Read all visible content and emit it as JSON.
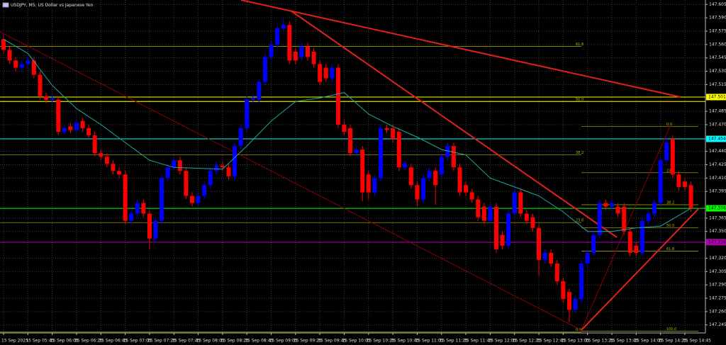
{
  "chart_data": {
    "type": "candlestick",
    "title": "USDJPY, M5:  US Dollar vs Japanese Yen",
    "up_color": "#0000ff",
    "down_color": "#ff0000",
    "grid": true,
    "ylim": [
      147.236,
      147.61
    ],
    "yticks": [
      147.605,
      {
        "value": 147.59,
        "label": "147.590"
      },
      147.575,
      {
        "value": 147.56,
        "label": "147.560"
      },
      147.545,
      {
        "value": 147.53,
        "label": "147.530"
      },
      147.515,
      147.485,
      {
        "value": 147.47,
        "label": "147.470"
      },
      {
        "value": 147.44,
        "label": "147.440"
      },
      147.425,
      {
        "value": 147.41,
        "label": "147.410"
      },
      147.395,
      147.365,
      {
        "value": 147.35,
        "label": "147.350"
      },
      {
        "value": 147.32,
        "label": "147.320"
      },
      147.305,
      {
        "value": 147.29,
        "label": "147.290"
      },
      147.275,
      {
        "value": 147.26,
        "label": "147.260"
      },
      147.245
    ],
    "xticks": [
      {
        "value": 0,
        "label": "15 Sep 2025"
      },
      {
        "value": 4,
        "label": "15 Sep 05:45"
      },
      {
        "value": 8,
        "label": "15 Sep 06:05"
      },
      {
        "value": 12,
        "label": "15 Sep 06:25"
      },
      {
        "value": 16,
        "label": "15 Sep 06:45"
      },
      {
        "value": 20,
        "label": "15 Sep 07:05"
      },
      {
        "value": 24,
        "label": "15 Sep 07:25"
      },
      {
        "value": 28,
        "label": "15 Sep 07:45"
      },
      {
        "value": 32,
        "label": "15 Sep 08:05"
      },
      {
        "value": 36,
        "label": "15 Sep 08:25"
      },
      {
        "value": 40,
        "label": "15 Sep 08:45"
      },
      {
        "value": 44,
        "label": "15 Sep 09:05"
      },
      {
        "value": 48,
        "label": "15 Sep 09:25"
      },
      {
        "value": 52,
        "label": "15 Sep 09:45"
      },
      {
        "value": 56,
        "label": "15 Sep 10:05"
      },
      {
        "value": 60,
        "label": "15 Sep 10:25"
      },
      {
        "value": 64,
        "label": "15 Sep 10:45"
      },
      {
        "value": 68,
        "label": "15 Sep 11:05"
      },
      {
        "value": 72,
        "label": "15 Sep 11:25"
      },
      {
        "value": 76,
        "label": "15 Sep 11:45"
      },
      {
        "value": 80,
        "label": "15 Sep 12:05"
      },
      {
        "value": 84,
        "label": "15 Sep 12:25"
      },
      {
        "value": 88,
        "label": "15 Sep 12:45"
      },
      {
        "value": 92,
        "label": "15 Sep 13:05"
      },
      {
        "value": 96,
        "label": "15 Sep 13:25"
      },
      {
        "value": 100,
        "label": "15 Sep 13:45"
      },
      {
        "value": 104,
        "label": "15 Sep 14:05"
      },
      {
        "value": 108,
        "label": "15 Sep 14:25"
      },
      {
        "value": 112,
        "label": "15 Sep 14:45"
      }
    ],
    "candles": [
      [
        147.566,
        147.57,
        147.55,
        147.554
      ],
      [
        147.554,
        147.558,
        147.538,
        147.542
      ],
      [
        147.542,
        147.546,
        147.53,
        147.534
      ],
      [
        147.534,
        147.542,
        147.53,
        147.538
      ],
      [
        147.538,
        147.546,
        147.534,
        147.542
      ],
      [
        147.542,
        147.546,
        147.522,
        147.526
      ],
      [
        147.526,
        147.53,
        147.498,
        147.502
      ],
      [
        147.502,
        147.506,
        147.494,
        147.498
      ],
      [
        147.498,
        147.504,
        147.494,
        147.5
      ],
      [
        147.498,
        147.502,
        147.458,
        147.462
      ],
      [
        147.462,
        147.47,
        147.458,
        147.466
      ],
      [
        147.468,
        147.472,
        147.46,
        147.464
      ],
      [
        147.464,
        147.476,
        147.46,
        147.472
      ],
      [
        147.474,
        147.478,
        147.462,
        147.466
      ],
      [
        147.466,
        147.47,
        147.454,
        147.458
      ],
      [
        147.458,
        147.462,
        147.434,
        147.438
      ],
      [
        147.438,
        147.442,
        147.43,
        147.434
      ],
      [
        147.434,
        147.438,
        147.422,
        147.426
      ],
      [
        147.426,
        147.43,
        147.414,
        147.418
      ],
      [
        147.418,
        147.422,
        147.41,
        147.414
      ],
      [
        147.414,
        147.418,
        147.358,
        147.362
      ],
      [
        147.362,
        147.374,
        147.358,
        147.37
      ],
      [
        147.37,
        147.386,
        147.366,
        147.382
      ],
      [
        147.382,
        147.386,
        147.366,
        147.37
      ],
      [
        147.37,
        147.374,
        147.33,
        147.342
      ],
      [
        147.342,
        147.366,
        147.338,
        147.362
      ],
      [
        147.362,
        147.414,
        147.358,
        147.41
      ],
      [
        147.41,
        147.426,
        147.406,
        147.422
      ],
      [
        147.422,
        147.434,
        147.418,
        147.43
      ],
      [
        147.43,
        147.434,
        147.414,
        147.418
      ],
      [
        147.418,
        147.422,
        147.386,
        147.39
      ],
      [
        147.39,
        147.394,
        147.378,
        147.382
      ],
      [
        147.382,
        147.394,
        147.378,
        147.39
      ],
      [
        147.39,
        147.406,
        147.386,
        147.402
      ],
      [
        147.402,
        147.422,
        147.398,
        147.418
      ],
      [
        147.418,
        147.428,
        147.414,
        147.424
      ],
      [
        147.424,
        147.428,
        147.418,
        147.422
      ],
      [
        147.422,
        147.426,
        147.408,
        147.412
      ],
      [
        147.412,
        147.45,
        147.408,
        147.446
      ],
      [
        147.446,
        147.47,
        147.442,
        147.466
      ],
      [
        147.466,
        147.502,
        147.462,
        147.498
      ],
      [
        147.498,
        147.504,
        147.494,
        147.5
      ],
      [
        147.498,
        147.522,
        147.494,
        147.518
      ],
      [
        147.518,
        147.55,
        147.514,
        147.546
      ],
      [
        147.546,
        147.564,
        147.542,
        147.56
      ],
      [
        147.56,
        147.582,
        147.556,
        147.578
      ],
      [
        147.578,
        147.59,
        147.574,
        147.582
      ],
      [
        147.582,
        147.586,
        147.538,
        147.542
      ],
      [
        147.552,
        147.556,
        147.538,
        147.542
      ],
      [
        147.546,
        147.562,
        147.542,
        147.558
      ],
      [
        147.558,
        147.562,
        147.542,
        147.546
      ],
      [
        147.552,
        147.556,
        147.534,
        147.538
      ],
      [
        147.538,
        147.542,
        147.514,
        147.518
      ],
      [
        147.534,
        147.538,
        147.518,
        147.522
      ],
      [
        147.522,
        147.538,
        147.518,
        147.534
      ],
      [
        147.534,
        147.538,
        147.466,
        147.47
      ],
      [
        147.47,
        147.474,
        147.458,
        147.462
      ],
      [
        147.466,
        147.47,
        147.434,
        147.438
      ],
      [
        147.438,
        147.446,
        147.434,
        147.442
      ],
      [
        147.442,
        147.446,
        147.384,
        147.394
      ],
      [
        147.414,
        147.418,
        147.386,
        147.394
      ],
      [
        147.394,
        147.414,
        147.39,
        147.41
      ],
      [
        147.41,
        147.47,
        147.406,
        147.466
      ],
      [
        147.466,
        147.47,
        147.46,
        147.464
      ],
      [
        147.466,
        147.47,
        147.45,
        147.454
      ],
      [
        147.462,
        147.466,
        147.418,
        147.422
      ],
      [
        147.422,
        147.43,
        147.418,
        147.426
      ],
      [
        147.422,
        147.426,
        147.398,
        147.402
      ],
      [
        147.402,
        147.406,
        147.378,
        147.386
      ],
      [
        147.386,
        147.414,
        147.382,
        147.41
      ],
      [
        147.41,
        147.422,
        147.406,
        147.418
      ],
      [
        147.418,
        147.422,
        147.38,
        147.402
      ],
      [
        147.414,
        147.438,
        147.41,
        147.434
      ],
      [
        147.434,
        147.45,
        147.43,
        147.446
      ],
      [
        147.446,
        147.45,
        147.418,
        147.422
      ],
      [
        147.422,
        147.426,
        147.39,
        147.394
      ],
      [
        147.402,
        147.406,
        147.39,
        147.394
      ],
      [
        147.394,
        147.398,
        147.382,
        147.386
      ],
      [
        147.386,
        147.39,
        147.362,
        147.366
      ],
      [
        147.378,
        147.382,
        147.358,
        147.362
      ],
      [
        147.362,
        147.382,
        147.358,
        147.378
      ],
      [
        147.378,
        147.382,
        147.326,
        147.33
      ],
      [
        147.346,
        147.35,
        147.33,
        147.334
      ],
      [
        147.334,
        147.374,
        147.33,
        147.37
      ],
      [
        147.37,
        147.398,
        147.366,
        147.394
      ],
      [
        147.394,
        147.398,
        147.366,
        147.37
      ],
      [
        147.37,
        147.374,
        147.358,
        147.362
      ],
      [
        147.366,
        147.37,
        147.35,
        147.354
      ],
      [
        147.354,
        147.358,
        147.3,
        147.318
      ],
      [
        147.318,
        147.33,
        147.314,
        147.326
      ],
      [
        147.326,
        147.33,
        147.31,
        147.314
      ],
      [
        147.314,
        147.318,
        147.29,
        147.294
      ],
      [
        147.294,
        147.298,
        147.27,
        147.274
      ],
      [
        147.282,
        147.286,
        147.248,
        147.262
      ],
      [
        147.262,
        147.278,
        147.258,
        147.274
      ],
      [
        147.274,
        147.318,
        147.27,
        147.314
      ],
      [
        147.314,
        147.33,
        147.31,
        147.326
      ],
      [
        147.326,
        147.35,
        147.322,
        147.346
      ],
      [
        147.346,
        147.386,
        147.342,
        147.382
      ],
      [
        147.382,
        147.386,
        147.374,
        147.378
      ],
      [
        147.378,
        147.386,
        147.374,
        147.382
      ],
      [
        147.378,
        147.382,
        147.366,
        147.37
      ],
      [
        147.378,
        147.382,
        147.346,
        147.35
      ],
      [
        147.35,
        147.354,
        147.322,
        147.326
      ],
      [
        147.334,
        147.338,
        147.322,
        147.326
      ],
      [
        147.326,
        147.366,
        147.322,
        147.362
      ],
      [
        147.362,
        147.374,
        147.358,
        147.37
      ],
      [
        147.37,
        147.386,
        147.366,
        147.382
      ],
      [
        147.382,
        147.434,
        147.378,
        147.43
      ],
      [
        147.43,
        147.456,
        147.426,
        147.45
      ],
      [
        147.454,
        147.458,
        147.41,
        147.414
      ],
      [
        147.414,
        147.418,
        147.396,
        147.4
      ],
      [
        147.406,
        147.41,
        147.396,
        147.4
      ],
      [
        147.402,
        147.406,
        147.372,
        147.376
      ]
    ],
    "indicator": {
      "color": "#1fa8a0",
      "x": [
        0,
        4,
        8,
        12,
        16,
        20,
        24,
        28,
        32,
        36,
        40,
        44,
        48,
        52,
        56,
        60,
        64,
        68,
        72,
        76,
        80,
        84,
        88,
        92,
        96,
        100,
        104,
        108,
        112,
        113
      ],
      "values": [
        147.566,
        147.55,
        147.514,
        147.488,
        147.47,
        147.45,
        147.43,
        147.422,
        147.421,
        147.42,
        147.446,
        147.474,
        147.496,
        147.5,
        147.506,
        147.482,
        147.468,
        147.456,
        147.442,
        147.436,
        147.41,
        147.4,
        147.39,
        147.372,
        147.35,
        147.35,
        147.354,
        147.356,
        147.372,
        147.376
      ]
    },
    "levels": [
      {
        "value": 147.501,
        "color": "#ffff00",
        "tag": true
      },
      {
        "value": 147.496,
        "color": "#ffff00",
        "tag": false
      },
      {
        "value": 147.454,
        "color": "#00ffff",
        "tag": true
      },
      {
        "value": 147.376,
        "color": "#00ff00",
        "tag": true
      },
      {
        "value": 147.338,
        "color": "#b000b0",
        "tag": true
      }
    ],
    "fibs": [
      {
        "color": "#b4b400",
        "levels": [
          {
            "label": "61.8",
            "value": 147.558
          },
          {
            "label": "50.0",
            "value": 147.496
          },
          {
            "label": "38.2",
            "value": 147.436
          },
          {
            "label": "23.6",
            "value": 147.36
          },
          {
            "label": "0.0",
            "value": 147.237
          }
        ]
      },
      {
        "color": "#b4b400",
        "levels": [
          {
            "label": "0.0",
            "value": 147.468
          },
          {
            "label": "23.6",
            "value": 147.416
          },
          {
            "label": "38.2",
            "value": 147.38
          },
          {
            "label": "50.0",
            "value": 147.354
          },
          {
            "label": "61.8",
            "value": 147.328
          },
          {
            "label": "100.0",
            "value": 147.238
          }
        ]
      }
    ]
  }
}
